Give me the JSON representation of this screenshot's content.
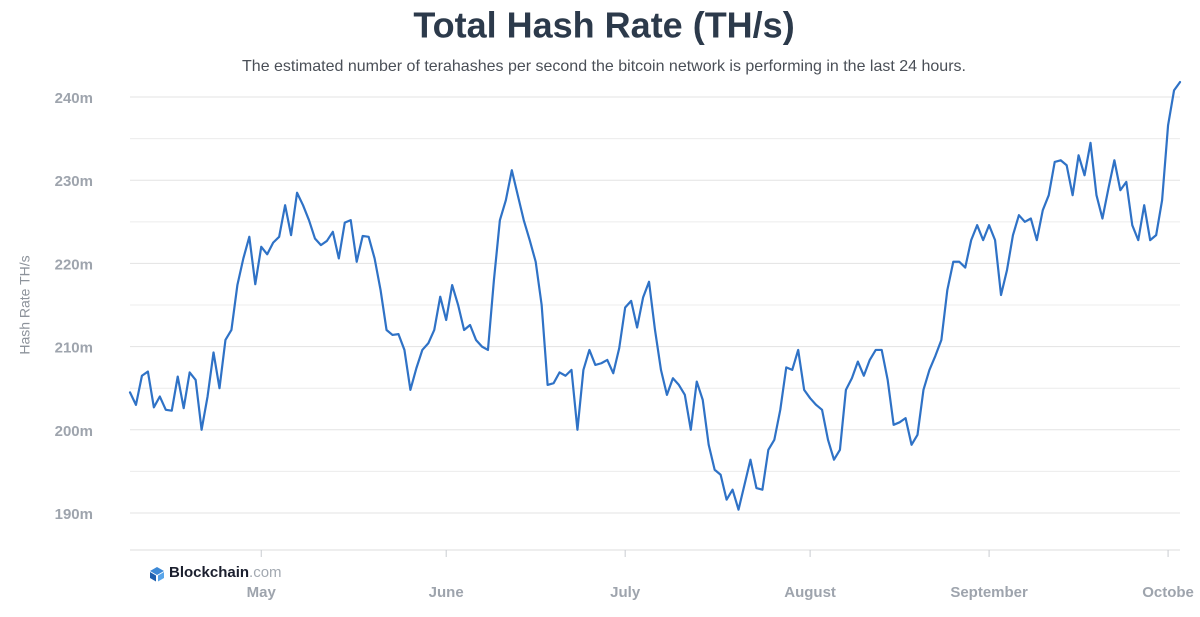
{
  "chart_data": {
    "type": "line",
    "title": "Total Hash Rate (TH/s)",
    "subtitle": "The estimated number of terahashes per second the bitcoin network is performing in the last 24 hours.",
    "y_label": "Hash Rate TH/s",
    "watermark": {
      "name": "Blockchain",
      "suffix": ".com"
    },
    "xlim": [
      0,
      176
    ],
    "xticks": [
      {
        "value": 22,
        "label": "May"
      },
      {
        "value": 53,
        "label": "June"
      },
      {
        "value": 83,
        "label": "July"
      },
      {
        "value": 114,
        "label": "August"
      },
      {
        "value": 144,
        "label": "September"
      },
      {
        "value": 174,
        "label": "Octobe"
      }
    ],
    "ylim": [
      185550000,
      242050000
    ],
    "yticks": [
      {
        "value": 190000000,
        "label": "190m"
      },
      {
        "value": 200000000,
        "label": "200m"
      },
      {
        "value": 210000000,
        "label": "210m"
      },
      {
        "value": 220000000,
        "label": "220m"
      },
      {
        "value": 230000000,
        "label": "230m"
      },
      {
        "value": 240000000,
        "label": "240m"
      }
    ],
    "minor_yticks": [
      195000000,
      205000000,
      215000000,
      225000000,
      235000000
    ],
    "grid": true,
    "series": [
      {
        "name": "Hash Rate",
        "color": "#2f72c6",
        "x": [
          0,
          1,
          2,
          3,
          4,
          5,
          6,
          7,
          8,
          9,
          10,
          11,
          12,
          13,
          14,
          15,
          16,
          17,
          18,
          19,
          20,
          21,
          22,
          23,
          24,
          25,
          26,
          27,
          28,
          29,
          30,
          31,
          32,
          33,
          34,
          35,
          36,
          37,
          38,
          39,
          40,
          41,
          42,
          43,
          44,
          45,
          46,
          47,
          48,
          49,
          50,
          51,
          52,
          53,
          54,
          55,
          56,
          57,
          58,
          59,
          60,
          61,
          62,
          63,
          64,
          65,
          66,
          67,
          68,
          69,
          70,
          71,
          72,
          73,
          74,
          75,
          76,
          77,
          78,
          79,
          80,
          81,
          82,
          83,
          84,
          85,
          86,
          87,
          88,
          89,
          90,
          91,
          92,
          93,
          94,
          95,
          96,
          97,
          98,
          99,
          100,
          101,
          102,
          103,
          104,
          105,
          106,
          107,
          108,
          109,
          110,
          111,
          112,
          113,
          114,
          115,
          116,
          117,
          118,
          119,
          120,
          121,
          122,
          123,
          124,
          125,
          126,
          127,
          128,
          129,
          130,
          131,
          132,
          133,
          134,
          135,
          136,
          137,
          138,
          139,
          140,
          141,
          142,
          143,
          144,
          145,
          146,
          147,
          148,
          149,
          150,
          151,
          152,
          153,
          154,
          155,
          156,
          157,
          158,
          159,
          160,
          161,
          162,
          163,
          164,
          165,
          166,
          167,
          168,
          169,
          170,
          171,
          172,
          173,
          174,
          175,
          176
        ],
        "values": [
          204500000,
          203000000,
          206500000,
          207000000,
          202700000,
          204000000,
          202400000,
          202300000,
          206400000,
          202600000,
          206900000,
          206000000,
          200000000,
          204000000,
          209300000,
          205000000,
          210800000,
          212000000,
          217400000,
          220600000,
          223200000,
          217500000,
          222000000,
          221100000,
          222500000,
          223200000,
          227000000,
          223400000,
          228500000,
          227000000,
          225200000,
          223000000,
          222200000,
          222700000,
          223800000,
          220600000,
          224900000,
          225200000,
          220200000,
          223300000,
          223200000,
          220600000,
          216800000,
          212000000,
          211400000,
          211500000,
          209600000,
          204800000,
          207400000,
          209600000,
          210400000,
          212000000,
          216000000,
          213200000,
          217400000,
          215000000,
          212000000,
          212600000,
          210800000,
          210000000,
          209600000,
          218000000,
          225200000,
          227600000,
          231200000,
          228200000,
          225200000,
          222800000,
          220200000,
          215000000,
          205400000,
          205600000,
          206900000,
          206500000,
          207200000,
          200000000,
          207200000,
          209600000,
          207800000,
          208000000,
          208400000,
          206800000,
          209800000,
          214700000,
          215500000,
          212300000,
          215900000,
          217800000,
          212000000,
          207200000,
          204200000,
          206200000,
          205400000,
          204200000,
          200000000,
          205800000,
          203600000,
          198200000,
          195200000,
          194600000,
          191600000,
          192800000,
          190400000,
          193400000,
          196400000,
          193000000,
          192800000,
          197600000,
          198800000,
          202400000,
          207500000,
          207200000,
          209600000,
          204800000,
          203800000,
          203000000,
          202400000,
          198800000,
          196400000,
          197600000,
          204800000,
          206200000,
          208200000,
          206500000,
          208400000,
          209600000,
          209600000,
          206000000,
          200600000,
          200900000,
          201400000,
          198200000,
          199400000,
          204800000,
          207200000,
          208900000,
          210800000,
          216800000,
          220200000,
          220200000,
          219500000,
          222800000,
          224600000,
          222800000,
          224600000,
          222800000,
          216200000,
          219200000,
          223400000,
          225800000,
          225000000,
          225400000,
          222800000,
          226400000,
          228200000,
          232200000,
          232400000,
          231800000,
          228200000,
          233000000,
          230600000,
          234500000,
          228200000,
          225400000,
          229000000,
          232400000,
          228800000,
          229800000,
          224600000,
          222800000,
          227000000,
          222800000,
          223400000,
          227600000,
          236600000,
          240800000,
          241800000
        ]
      }
    ]
  }
}
